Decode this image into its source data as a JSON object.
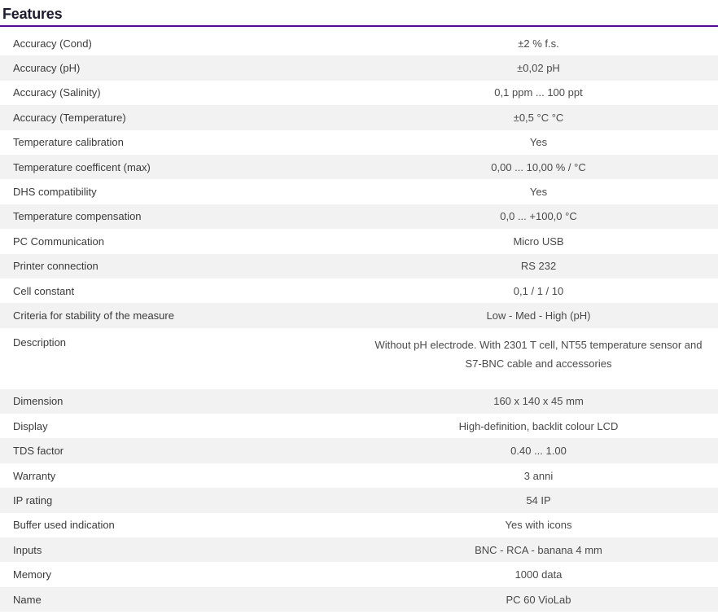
{
  "page": {
    "title": "Features"
  },
  "colors": {
    "accent_underline": "#4b0e8f",
    "row_alt_bg": "#f2f2f2",
    "heading_text": "#1c1c2e",
    "body_text": "#414141"
  },
  "table": {
    "rows": [
      {
        "label": "Accuracy (Cond)",
        "value": "±2 % f.s."
      },
      {
        "label": "Accuracy (pH)",
        "value": "±0,02 pH"
      },
      {
        "label": "Accuracy (Salinity)",
        "value": "0,1 ppm ... 100 ppt"
      },
      {
        "label": "Accuracy (Temperature)",
        "value": "±0,5 °C °C"
      },
      {
        "label": "Temperature calibration",
        "value": "Yes"
      },
      {
        "label": "Temperature coefficent (max)",
        "value": "0,00 ... 10,00 % / °C"
      },
      {
        "label": "DHS compatibility",
        "value": "Yes"
      },
      {
        "label": "Temperature compensation",
        "value": "0,0 ... +100,0 °C"
      },
      {
        "label": "PC Communication",
        "value": "Micro USB"
      },
      {
        "label": "Printer connection",
        "value": "RS 232"
      },
      {
        "label": "Cell constant",
        "value": "0,1 / 1 / 10"
      },
      {
        "label": "Criteria for stability of the measure",
        "value": "Low - Med - High (pH)"
      },
      {
        "label": "Description",
        "value": "Without pH electrode. With 2301 T cell, NT55 temperature sensor and S7-BNC cable and accessories"
      },
      {
        "label": "Dimension",
        "value": "160 x 140 x 45 mm"
      },
      {
        "label": "Display",
        "value": "High-definition, backlit colour LCD"
      },
      {
        "label": "TDS factor",
        "value": "0.40 ... 1.00"
      },
      {
        "label": "Warranty",
        "value": "3 anni"
      },
      {
        "label": "IP rating",
        "value": "54 IP"
      },
      {
        "label": "Buffer used indication",
        "value": "Yes with icons"
      },
      {
        "label": "Inputs",
        "value": "BNC - RCA - banana 4 mm"
      },
      {
        "label": "Memory",
        "value": "1000 data"
      },
      {
        "label": "Name",
        "value": "PC 60 VioLab"
      }
    ]
  }
}
